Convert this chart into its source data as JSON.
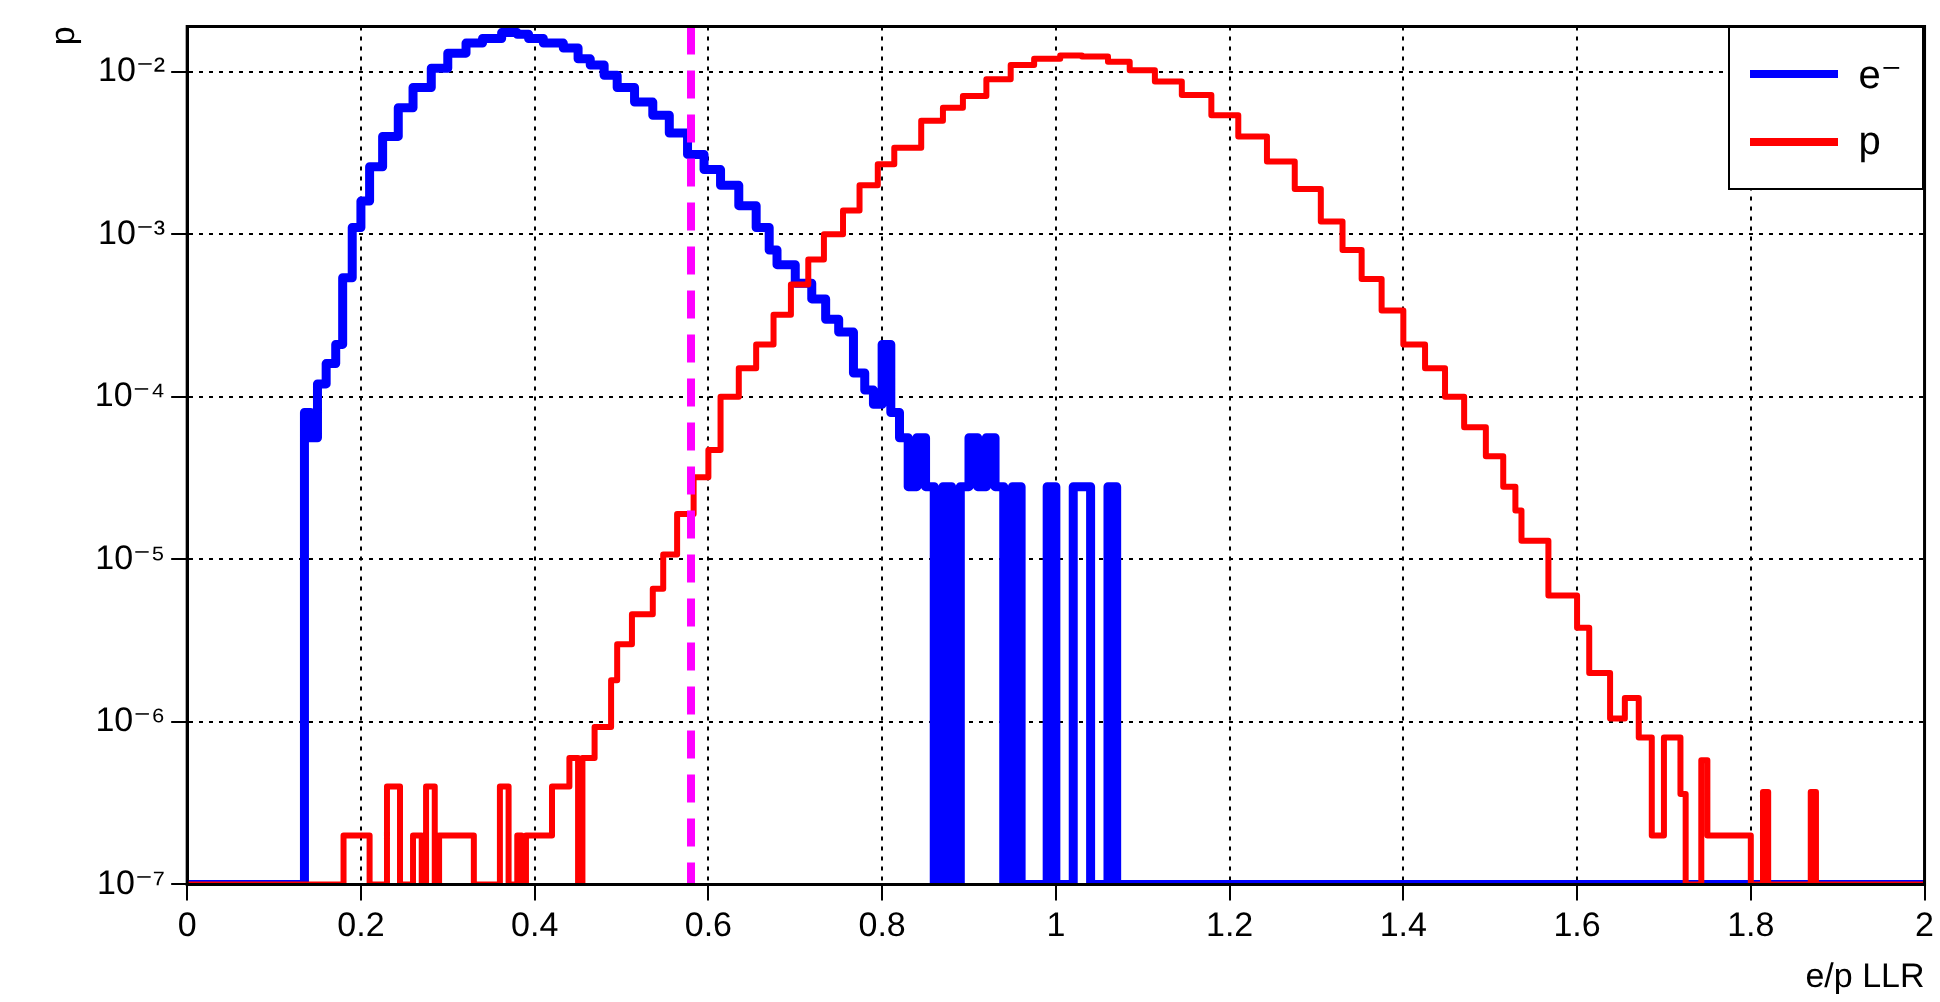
{
  "chart_data": {
    "type": "step",
    "xlabel": "e/p LLR",
    "ylabel": "p",
    "log": "y",
    "grid": true,
    "legend": "top right",
    "xlim": [
      0,
      2
    ],
    "xticks": [
      0,
      0.2,
      0.4,
      0.6,
      0.8,
      1,
      1.2,
      1.4,
      1.6,
      1.8,
      2
    ],
    "ylim": [
      1e-07,
      0.019
    ],
    "yticks": [
      {
        "value": 1e-07,
        "label": "10⁻⁷"
      },
      {
        "value": 1e-06,
        "label": "10⁻⁶"
      },
      {
        "value": 1e-05,
        "label": "10⁻⁵"
      },
      {
        "value": 0.0001,
        "label": "10⁻⁴"
      },
      {
        "value": 0.001,
        "label": "10⁻³"
      },
      {
        "value": 0.01,
        "label": "10⁻²"
      }
    ],
    "ref_lines": [
      {
        "axis": "x",
        "value": 0.58,
        "color": "#ff00ff",
        "line_style": "dashed"
      }
    ],
    "series": [
      {
        "name": "e⁻",
        "color": "#0000ff",
        "x": [
          0,
          0.135,
          0.142,
          0.15,
          0.16,
          0.171,
          0.179,
          0.19,
          0.2,
          0.21,
          0.225,
          0.243,
          0.26,
          0.281,
          0.3,
          0.321,
          0.34,
          0.362,
          0.38,
          0.393,
          0.41,
          0.433,
          0.45,
          0.464,
          0.48,
          0.495,
          0.515,
          0.536,
          0.555,
          0.576,
          0.595,
          0.614,
          0.635,
          0.655,
          0.67,
          0.679,
          0.7,
          0.719,
          0.735,
          0.75,
          0.767,
          0.78,
          0.79,
          0.8,
          0.81,
          0.82,
          0.83,
          0.84,
          0.85,
          0.86,
          0.87,
          0.88,
          0.89,
          0.9,
          0.91,
          0.92,
          0.93,
          0.94,
          0.95,
          0.96,
          0.99,
          1,
          1.02,
          1.035,
          1.04,
          1.06,
          1.07,
          2
        ],
        "values": [
          1e-07,
          8e-05,
          5.6e-05,
          0.00012,
          0.00016,
          0.00021,
          0.00054,
          0.0011,
          0.0016,
          0.0026,
          0.004,
          0.006,
          0.008,
          0.0105,
          0.013,
          0.015,
          0.016,
          0.0174,
          0.017,
          0.016,
          0.015,
          0.014,
          0.012,
          0.011,
          0.0095,
          0.008,
          0.0065,
          0.0054,
          0.0042,
          0.0031,
          0.0025,
          0.002,
          0.0015,
          0.0011,
          0.0008,
          0.00065,
          0.0005,
          0.0004,
          0.0003,
          0.00025,
          0.00014,
          0.00011,
          9e-05,
          0.00021,
          8e-05,
          5.6e-05,
          2.8e-05,
          5.6e-05,
          2.8e-05,
          1e-07,
          2.8e-05,
          1e-07,
          2.8e-05,
          5.6e-05,
          2.8e-05,
          5.6e-05,
          2.8e-05,
          1e-07,
          2.8e-05,
          1e-07,
          2.8e-05,
          1e-07,
          2.8e-05,
          2.8e-05,
          1e-07,
          2.8e-05,
          1e-07,
          1e-07
        ]
      },
      {
        "name": "p",
        "color": "#ff0000",
        "x": [
          0,
          0.18,
          0.21,
          0.23,
          0.245,
          0.26,
          0.27,
          0.275,
          0.285,
          0.29,
          0.33,
          0.36,
          0.37,
          0.38,
          0.385,
          0.39,
          0.42,
          0.44,
          0.45,
          0.455,
          0.469,
          0.488,
          0.495,
          0.512,
          0.536,
          0.548,
          0.564,
          0.583,
          0.6,
          0.614,
          0.635,
          0.655,
          0.675,
          0.695,
          0.715,
          0.733,
          0.755,
          0.774,
          0.795,
          0.814,
          0.845,
          0.87,
          0.893,
          0.92,
          0.948,
          0.975,
          1.005,
          1.03,
          1.06,
          1.085,
          1.114,
          1.145,
          1.179,
          1.21,
          1.243,
          1.275,
          1.305,
          1.33,
          1.352,
          1.375,
          1.4,
          1.425,
          1.448,
          1.47,
          1.495,
          1.515,
          1.529,
          1.536,
          1.567,
          1.6,
          1.614,
          1.638,
          1.655,
          1.671,
          1.686,
          1.7,
          1.719,
          1.725,
          1.743,
          1.75,
          1.8,
          1.814,
          1.82,
          1.869,
          1.875,
          2
        ],
        "values": [
          1e-07,
          2e-07,
          1e-07,
          4e-07,
          1e-07,
          2e-07,
          1e-07,
          4e-07,
          1e-07,
          2e-07,
          1e-07,
          4e-07,
          1e-07,
          2e-07,
          1e-07,
          2e-07,
          4e-07,
          6e-07,
          1e-07,
          6e-07,
          9.3e-07,
          1.8e-06,
          3e-06,
          4.6e-06,
          6.6e-06,
          1.07e-05,
          1.9e-05,
          3.2e-05,
          4.7e-05,
          0.0001,
          0.00015,
          0.00021,
          0.00032,
          0.00049,
          0.0007,
          0.001,
          0.0014,
          0.002,
          0.0027,
          0.0034,
          0.005,
          0.006,
          0.0071,
          0.009,
          0.011,
          0.012,
          0.0126,
          0.0124,
          0.0115,
          0.0102,
          0.0087,
          0.0072,
          0.0054,
          0.004,
          0.0028,
          0.0019,
          0.0012,
          0.0008,
          0.00053,
          0.00034,
          0.00021,
          0.00015,
          0.0001,
          6.5e-05,
          4.3e-05,
          2.8e-05,
          2e-05,
          1.3e-05,
          6e-06,
          3.8e-06,
          2e-06,
          1.05e-06,
          1.4e-06,
          8e-07,
          2e-07,
          8e-07,
          3.6e-07,
          1e-07,
          5.8e-07,
          2e-07,
          1e-07,
          3.7e-07,
          1e-07,
          3.7e-07,
          1e-07,
          1e-07
        ]
      }
    ]
  }
}
